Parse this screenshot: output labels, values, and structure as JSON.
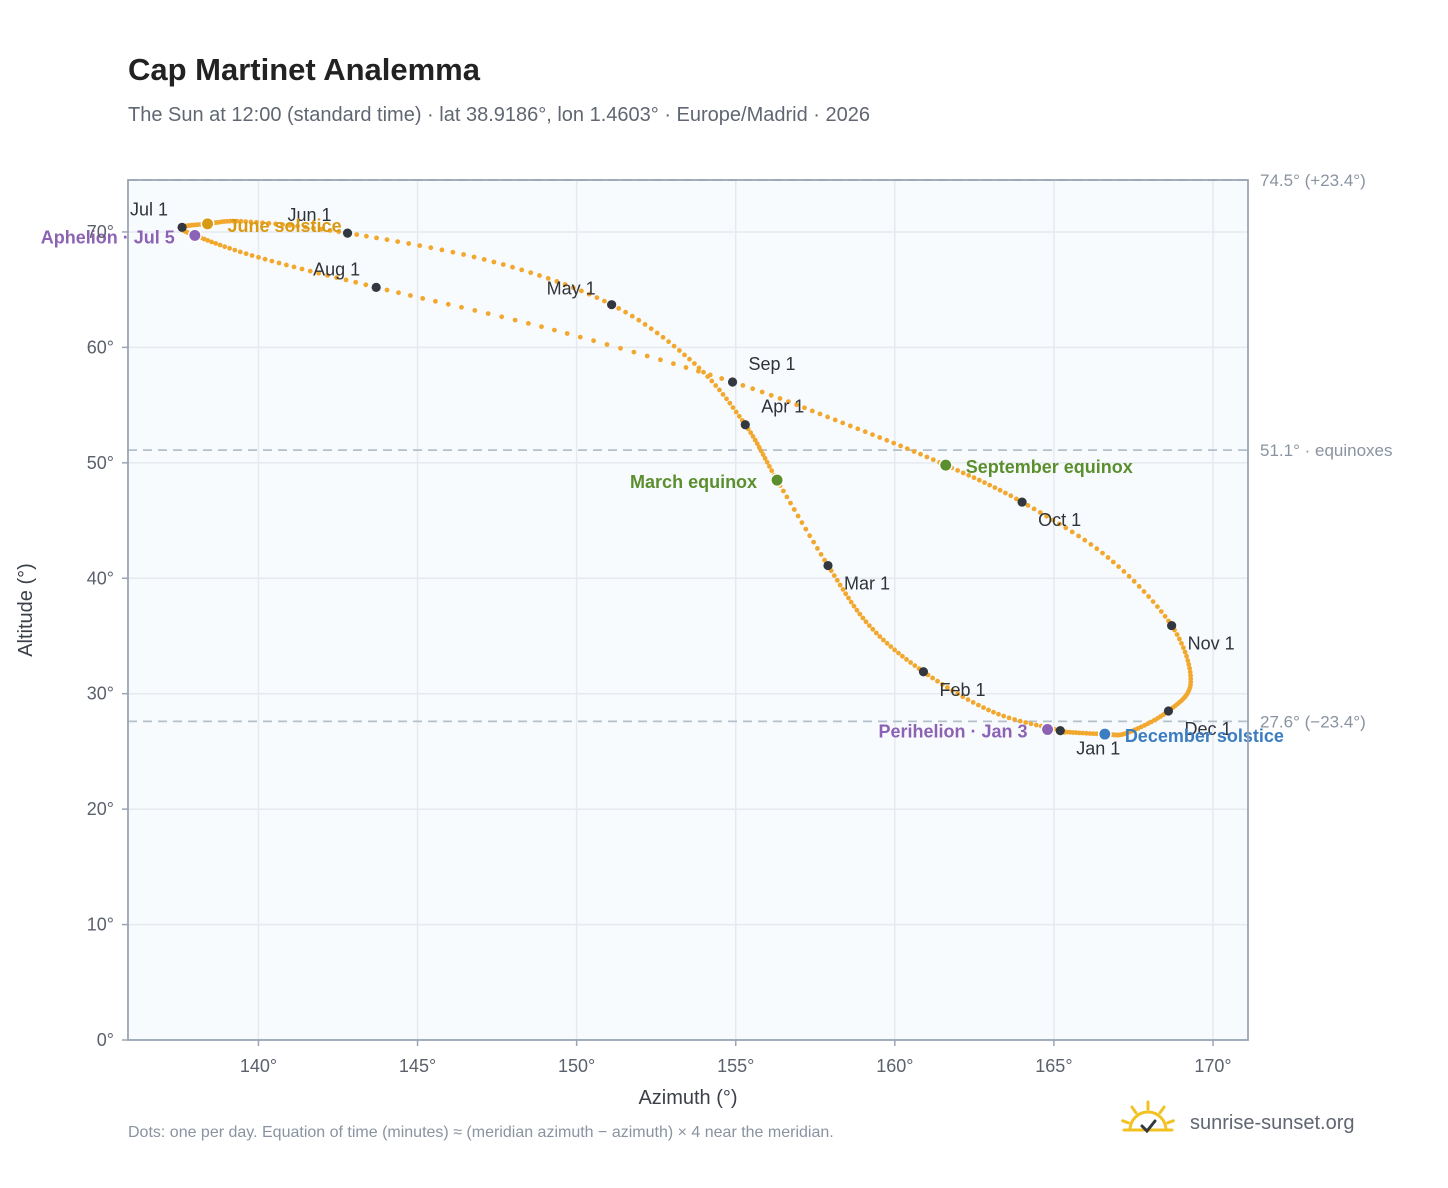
{
  "title": "Cap Martinet Analemma",
  "subtitle": "The Sun at 12:00 (standard time) · lat 38.9186°, lon 1.4603° · Europe/Madrid · 2026",
  "footnote": "Dots: one per day. Equation of time (minutes) ≈ (meridian azimuth − azimuth) × 4 near the meridian.",
  "brand": "sunrise-sunset.org",
  "colors": {
    "curve": "#f2a82e",
    "month_dot": "#333740",
    "equinox": "#5b8f2e",
    "solstice_june": "#d89a14",
    "solstice_december": "#3b7dc0",
    "apsis": "#8c62b4",
    "reference": "#b4c0cc",
    "plot_bg": "#f8fbfd",
    "grid": "#e6eaef",
    "brand_sun": "#f2c122"
  },
  "chart_data": {
    "type": "scatter",
    "xlabel": "Azimuth (°)",
    "ylabel": "Altitude (°)",
    "xlim": [
      135.9,
      171.1
    ],
    "ylim": [
      0,
      74.5
    ],
    "xticks": [
      140,
      145,
      150,
      155,
      160,
      165,
      170
    ],
    "yticks": [
      0,
      10,
      20,
      30,
      40,
      50,
      60,
      70
    ],
    "grid": true,
    "tick_suffix": "°",
    "path": [
      {
        "date": "Jan 1",
        "az": 165.2,
        "alt": 26.8
      },
      {
        "date": "Jan 15",
        "az": 163.1,
        "alt": 28.4
      },
      {
        "date": "Feb 1",
        "az": 160.9,
        "alt": 31.9
      },
      {
        "date": "Feb 15",
        "az": 159.2,
        "alt": 35.9
      },
      {
        "date": "Mar 1",
        "az": 157.9,
        "alt": 41.1
      },
      {
        "date": "Mar 20",
        "az": 156.3,
        "alt": 48.5
      },
      {
        "date": "Apr 1",
        "az": 155.3,
        "alt": 53.3
      },
      {
        "date": "Apr 15",
        "az": 153.7,
        "alt": 58.6
      },
      {
        "date": "May 1",
        "az": 151.1,
        "alt": 63.7
      },
      {
        "date": "May 15",
        "az": 147.4,
        "alt": 67.4
      },
      {
        "date": "Jun 1",
        "az": 142.8,
        "alt": 69.9
      },
      {
        "date": "Jun 15",
        "az": 139.6,
        "alt": 70.9
      },
      {
        "date": "Jun 21",
        "az": 138.4,
        "alt": 70.7
      },
      {
        "date": "Jul 1",
        "az": 137.6,
        "alt": 70.4
      },
      {
        "date": "Jul 5",
        "az": 138.0,
        "alt": 69.7
      },
      {
        "date": "Jul 15",
        "az": 140.0,
        "alt": 67.8
      },
      {
        "date": "Aug 1",
        "az": 143.7,
        "alt": 65.2
      },
      {
        "date": "Aug 15",
        "az": 149.3,
        "alt": 61.5
      },
      {
        "date": "Sep 1",
        "az": 154.9,
        "alt": 57.0
      },
      {
        "date": "Sep 15",
        "az": 158.6,
        "alt": 53.2
      },
      {
        "date": "Sep 23",
        "az": 161.6,
        "alt": 49.8
      },
      {
        "date": "Oct 1",
        "az": 164.0,
        "alt": 46.6
      },
      {
        "date": "Oct 15",
        "az": 166.7,
        "alt": 41.8
      },
      {
        "date": "Nov 1",
        "az": 168.7,
        "alt": 35.9
      },
      {
        "date": "Nov 15",
        "az": 169.3,
        "alt": 31.0
      },
      {
        "date": "Dec 1",
        "az": 168.6,
        "alt": 28.5
      },
      {
        "date": "Dec 15",
        "az": 167.3,
        "alt": 26.6
      },
      {
        "date": "Dec 21",
        "az": 166.6,
        "alt": 26.5
      },
      {
        "date": "Dec 31",
        "az": 165.3,
        "alt": 26.7
      }
    ],
    "months": [
      {
        "label": "Jan 1",
        "az": 165.2,
        "alt": 26.8
      },
      {
        "label": "Feb 1",
        "az": 160.9,
        "alt": 31.9
      },
      {
        "label": "Mar 1",
        "az": 157.9,
        "alt": 41.1
      },
      {
        "label": "Apr 1",
        "az": 155.3,
        "alt": 53.3
      },
      {
        "label": "May 1",
        "az": 151.1,
        "alt": 63.7
      },
      {
        "label": "Jun 1",
        "az": 142.8,
        "alt": 69.9
      },
      {
        "label": "Jul 1",
        "az": 137.6,
        "alt": 70.4
      },
      {
        "label": "Aug 1",
        "az": 143.7,
        "alt": 65.2
      },
      {
        "label": "Sep 1",
        "az": 154.9,
        "alt": 57.0
      },
      {
        "label": "Oct 1",
        "az": 164.0,
        "alt": 46.6
      },
      {
        "label": "Nov 1",
        "az": 168.7,
        "alt": 35.9
      },
      {
        "label": "Dec 1",
        "az": 168.6,
        "alt": 28.5
      }
    ],
    "events": [
      {
        "label": "March equinox",
        "az": 156.3,
        "alt": 48.5,
        "kind": "equinox"
      },
      {
        "label": "September equinox",
        "az": 161.6,
        "alt": 49.8,
        "kind": "equinox"
      },
      {
        "label": "June solstice",
        "az": 138.4,
        "alt": 70.7,
        "kind": "solstice_june"
      },
      {
        "label": "December solstice",
        "az": 166.6,
        "alt": 26.5,
        "kind": "solstice_december"
      },
      {
        "label": "Aphelion · Jul 5",
        "az": 138.0,
        "alt": 69.7,
        "kind": "apsis"
      },
      {
        "label": "Perihelion · Jan 3",
        "az": 164.8,
        "alt": 26.9,
        "kind": "apsis"
      }
    ],
    "reference_lines": [
      {
        "alt": 74.5,
        "label": "74.5° (+23.4°)"
      },
      {
        "alt": 51.1,
        "label": "51.1° · equinoxes"
      },
      {
        "alt": 27.6,
        "label": "27.6° (−23.4°)"
      }
    ]
  }
}
